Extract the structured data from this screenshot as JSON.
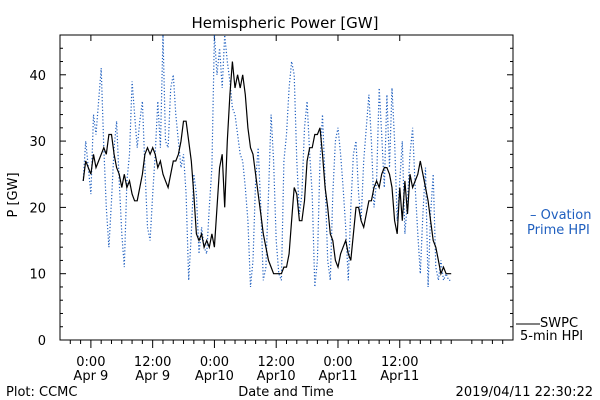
{
  "chart_data": {
    "type": "line",
    "title": "Hemispheric Power [GW]",
    "xlabel": "Date and Time",
    "ylabel": "P [GW]",
    "ylim": [
      0,
      46
    ],
    "xlim": [
      -6,
      82
    ],
    "y_ticks": [
      0,
      10,
      20,
      30,
      40
    ],
    "x_ticks": [
      {
        "x": 0,
        "top": "0:00",
        "bottom": "Apr 9"
      },
      {
        "x": 12,
        "top": "12:00",
        "bottom": "Apr 9"
      },
      {
        "x": 24,
        "top": "0:00",
        "bottom": "Apr10"
      },
      {
        "x": 36,
        "top": "12:00",
        "bottom": "Apr10"
      },
      {
        "x": 48,
        "top": "0:00",
        "bottom": "Apr11"
      },
      {
        "x": 60,
        "top": "12:00",
        "bottom": "Apr11"
      }
    ],
    "x_unit": "hours from 2019-04-09 00:00",
    "grid": false,
    "series": [
      {
        "name": "SWPC 5-min HPI",
        "color": "#000000",
        "style": "solid",
        "points": [
          [
            -1.5,
            24
          ],
          [
            -1,
            27
          ],
          [
            -0.5,
            26
          ],
          [
            0,
            25
          ],
          [
            0.5,
            28
          ],
          [
            1,
            26
          ],
          [
            1.5,
            27
          ],
          [
            2,
            28
          ],
          [
            2.5,
            29
          ],
          [
            3,
            28
          ],
          [
            3.5,
            31
          ],
          [
            4,
            31
          ],
          [
            4.5,
            28
          ],
          [
            5,
            26
          ],
          [
            5.5,
            25
          ],
          [
            6,
            23
          ],
          [
            6.5,
            25
          ],
          [
            7,
            23
          ],
          [
            7.5,
            24
          ],
          [
            8,
            22
          ],
          [
            8.5,
            21
          ],
          [
            9,
            21
          ],
          [
            9.5,
            23
          ],
          [
            10,
            25
          ],
          [
            10.5,
            28
          ],
          [
            11,
            29
          ],
          [
            11.5,
            28
          ],
          [
            12,
            29
          ],
          [
            12.5,
            28
          ],
          [
            13,
            26
          ],
          [
            13.5,
            27
          ],
          [
            14,
            25
          ],
          [
            14.5,
            24
          ],
          [
            15,
            23
          ],
          [
            15.5,
            25
          ],
          [
            16,
            27
          ],
          [
            16.5,
            27
          ],
          [
            17,
            28
          ],
          [
            17.5,
            30
          ],
          [
            18,
            33
          ],
          [
            18.5,
            33
          ],
          [
            19,
            30
          ],
          [
            19.5,
            27
          ],
          [
            20,
            22
          ],
          [
            20.5,
            16
          ],
          [
            21,
            15
          ],
          [
            21.5,
            16
          ],
          [
            22,
            14
          ],
          [
            22.5,
            15
          ],
          [
            23,
            14
          ],
          [
            23.5,
            16
          ],
          [
            24,
            14
          ],
          [
            24.5,
            20
          ],
          [
            25,
            26
          ],
          [
            25.5,
            28
          ],
          [
            26,
            20
          ],
          [
            26.5,
            30
          ],
          [
            27,
            37
          ],
          [
            27.5,
            42
          ],
          [
            28,
            38
          ],
          [
            28.5,
            40
          ],
          [
            29,
            38
          ],
          [
            29.5,
            40
          ],
          [
            30,
            37
          ],
          [
            30.5,
            32
          ],
          [
            31,
            29
          ],
          [
            31.5,
            28
          ],
          [
            32,
            25
          ],
          [
            32.5,
            22
          ],
          [
            33,
            19
          ],
          [
            33.5,
            16
          ],
          [
            34,
            14
          ],
          [
            34.5,
            12
          ],
          [
            35,
            11
          ],
          [
            35.5,
            10
          ],
          [
            36,
            10
          ],
          [
            36.5,
            10
          ],
          [
            37,
            10
          ],
          [
            37.5,
            11
          ],
          [
            38,
            11
          ],
          [
            38.5,
            13
          ],
          [
            39,
            18
          ],
          [
            39.5,
            23
          ],
          [
            40,
            22
          ],
          [
            40.5,
            18
          ],
          [
            41,
            18
          ],
          [
            41.5,
            21
          ],
          [
            42,
            27
          ],
          [
            42.5,
            29
          ],
          [
            43,
            29
          ],
          [
            43.5,
            31
          ],
          [
            44,
            31
          ],
          [
            44.5,
            32
          ],
          [
            45,
            28
          ],
          [
            45.5,
            23
          ],
          [
            46,
            20
          ],
          [
            46.5,
            16
          ],
          [
            47,
            15
          ],
          [
            47.5,
            12
          ],
          [
            48,
            11
          ],
          [
            48.5,
            13
          ],
          [
            49,
            14
          ],
          [
            49.5,
            15
          ],
          [
            50,
            13
          ],
          [
            50.5,
            12
          ],
          [
            51,
            16
          ],
          [
            51.5,
            20
          ],
          [
            52,
            20
          ],
          [
            52.5,
            18
          ],
          [
            53,
            17
          ],
          [
            53.5,
            19
          ],
          [
            54,
            21
          ],
          [
            54.5,
            21
          ],
          [
            55,
            23
          ],
          [
            55.5,
            24
          ],
          [
            56,
            23
          ],
          [
            56.5,
            25
          ],
          [
            57,
            26
          ],
          [
            57.5,
            26
          ],
          [
            58,
            25
          ],
          [
            58.5,
            23
          ],
          [
            59,
            18
          ],
          [
            59.5,
            16
          ],
          [
            60,
            23
          ],
          [
            60.5,
            18
          ],
          [
            61,
            24
          ],
          [
            61.5,
            19
          ],
          [
            62,
            25
          ],
          [
            62.5,
            23
          ],
          [
            63,
            24
          ],
          [
            63.5,
            25
          ],
          [
            64,
            27
          ],
          [
            64.5,
            25
          ],
          [
            65,
            23
          ],
          [
            65.5,
            21
          ],
          [
            66,
            18
          ],
          [
            66.5,
            15
          ],
          [
            67,
            14
          ],
          [
            67.5,
            12
          ],
          [
            68,
            10
          ],
          [
            68.5,
            11
          ],
          [
            69,
            10
          ],
          [
            69.5,
            10
          ],
          [
            70,
            10
          ]
        ]
      },
      {
        "name": "Ovation Prime HPI",
        "color": "#1f5fbf",
        "style": "dotted",
        "points": [
          [
            -1.5,
            24
          ],
          [
            -1,
            30
          ],
          [
            -0.5,
            26
          ],
          [
            0,
            22
          ],
          [
            0.5,
            34
          ],
          [
            1,
            31
          ],
          [
            1.5,
            36
          ],
          [
            2,
            41
          ],
          [
            2.5,
            29
          ],
          [
            3,
            20
          ],
          [
            3.5,
            14
          ],
          [
            4,
            21
          ],
          [
            4.5,
            29
          ],
          [
            5,
            33
          ],
          [
            5.5,
            24
          ],
          [
            6,
            16
          ],
          [
            6.5,
            11
          ],
          [
            7,
            24
          ],
          [
            7.5,
            28
          ],
          [
            8,
            39
          ],
          [
            8.5,
            34
          ],
          [
            9,
            29
          ],
          [
            9.5,
            33
          ],
          [
            10,
            36
          ],
          [
            10.5,
            26
          ],
          [
            11,
            17
          ],
          [
            11.5,
            15
          ],
          [
            12,
            22
          ],
          [
            12.5,
            28
          ],
          [
            13,
            36
          ],
          [
            13.5,
            29
          ],
          [
            14,
            46
          ],
          [
            14.5,
            30
          ],
          [
            15,
            29
          ],
          [
            15.5,
            38
          ],
          [
            16,
            40
          ],
          [
            16.5,
            34
          ],
          [
            17,
            30
          ],
          [
            17.5,
            26
          ],
          [
            18,
            28
          ],
          [
            18.5,
            22
          ],
          [
            19,
            9
          ],
          [
            19.5,
            16
          ],
          [
            20,
            25
          ],
          [
            20.5,
            22
          ],
          [
            21,
            13
          ],
          [
            21.5,
            17
          ],
          [
            22,
            14
          ],
          [
            22.5,
            13
          ],
          [
            23,
            20
          ],
          [
            23.5,
            26
          ],
          [
            24,
            46
          ],
          [
            24.5,
            40
          ],
          [
            25,
            44
          ],
          [
            25.5,
            38
          ],
          [
            26,
            46
          ],
          [
            26.5,
            42
          ],
          [
            27,
            39
          ],
          [
            27.5,
            35
          ],
          [
            28,
            34
          ],
          [
            28.5,
            31
          ],
          [
            29,
            28
          ],
          [
            29.5,
            27
          ],
          [
            30,
            23
          ],
          [
            30.5,
            18
          ],
          [
            31,
            8
          ],
          [
            31.5,
            12
          ],
          [
            32,
            24
          ],
          [
            32.5,
            29
          ],
          [
            33,
            20
          ],
          [
            33.5,
            9
          ],
          [
            34,
            11
          ],
          [
            34.5,
            22
          ],
          [
            35,
            34
          ],
          [
            35.5,
            27
          ],
          [
            36,
            15
          ],
          [
            36.5,
            10
          ],
          [
            37,
            9
          ],
          [
            37.5,
            27
          ],
          [
            38,
            31
          ],
          [
            38.5,
            38
          ],
          [
            39,
            42
          ],
          [
            39.5,
            40
          ],
          [
            40,
            27
          ],
          [
            40.5,
            19
          ],
          [
            41,
            22
          ],
          [
            41.5,
            32
          ],
          [
            42,
            36
          ],
          [
            42.5,
            28
          ],
          [
            43,
            22
          ],
          [
            43.5,
            8
          ],
          [
            44,
            12
          ],
          [
            44.5,
            27
          ],
          [
            45,
            34
          ],
          [
            45.5,
            24
          ],
          [
            46,
            12
          ],
          [
            46.5,
            9
          ],
          [
            47,
            22
          ],
          [
            47.5,
            30
          ],
          [
            48,
            32
          ],
          [
            48.5,
            28
          ],
          [
            49,
            23
          ],
          [
            49.5,
            17
          ],
          [
            50,
            9
          ],
          [
            50.5,
            20
          ],
          [
            51,
            28
          ],
          [
            51.5,
            30
          ],
          [
            52,
            22
          ],
          [
            52.5,
            18
          ],
          [
            53,
            27
          ],
          [
            53.5,
            32
          ],
          [
            54,
            37
          ],
          [
            54.5,
            30
          ],
          [
            55,
            20
          ],
          [
            55.5,
            24
          ],
          [
            56,
            38
          ],
          [
            56.5,
            31
          ],
          [
            57,
            23
          ],
          [
            57.5,
            37
          ],
          [
            58,
            26
          ],
          [
            58.5,
            38
          ],
          [
            59,
            30
          ],
          [
            59.5,
            18
          ],
          [
            60,
            24
          ],
          [
            60.5,
            30
          ],
          [
            61,
            16
          ],
          [
            61.5,
            21
          ],
          [
            62,
            28
          ],
          [
            62.5,
            32
          ],
          [
            63,
            23
          ],
          [
            63.5,
            16
          ],
          [
            64,
            10
          ],
          [
            64.5,
            19
          ],
          [
            65,
            26
          ],
          [
            65.5,
            8
          ],
          [
            66,
            19
          ],
          [
            66.5,
            25
          ],
          [
            67,
            11
          ],
          [
            67.5,
            9
          ],
          [
            68,
            12
          ],
          [
            68.5,
            9
          ],
          [
            69,
            10
          ],
          [
            69.5,
            9
          ],
          [
            70,
            9
          ]
        ]
      }
    ]
  },
  "legend": {
    "ovation_line1": "Ovation",
    "ovation_line2": "Prime HPI",
    "swpc_line1": "SWPC",
    "swpc_line2": "5-min HPI"
  },
  "footer": {
    "plot_credit": "Plot: CCMC",
    "timestamp": "2019/04/11 22:30:22"
  }
}
